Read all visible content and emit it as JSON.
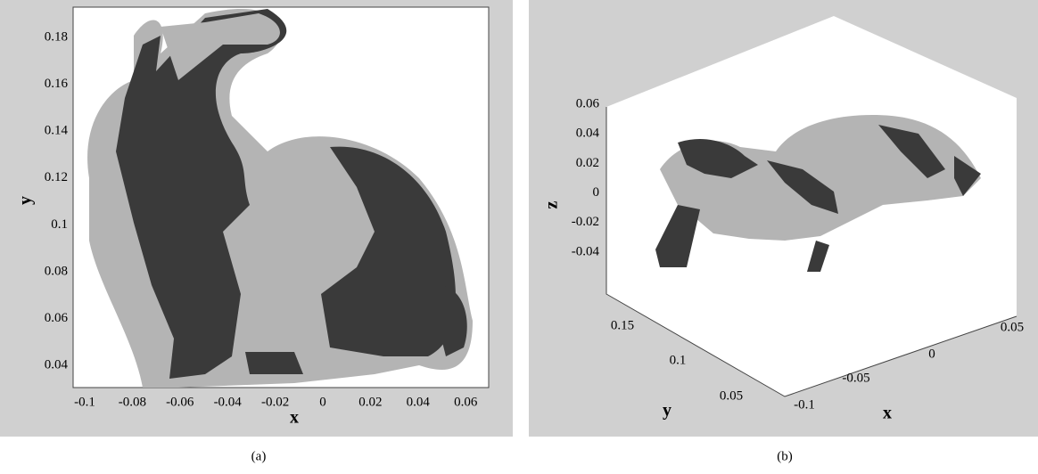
{
  "panels": [
    {
      "caption": "(a)",
      "x_label": "x",
      "y_label": "y",
      "x_ticks": [
        "-0.1",
        "-0.08",
        "-0.06",
        "-0.04",
        "-0.02",
        "0",
        "0.02",
        "0.04",
        "0.06"
      ],
      "y_ticks": [
        "0.18",
        "0.16",
        "0.14",
        "0.12",
        "0.1",
        "0.08",
        "0.06",
        "0.04"
      ]
    },
    {
      "caption": "(b)",
      "x_label": "x",
      "y_label": "y",
      "z_label": "z",
      "x_ticks": [
        "-0.1",
        "-0.05",
        "0",
        "0.05"
      ],
      "y_ticks": [
        "0.15",
        "0.1",
        "0.05"
      ],
      "z_ticks": [
        "0.06",
        "0.04",
        "0.02",
        "0",
        "-0.02",
        "-0.04"
      ]
    }
  ]
}
